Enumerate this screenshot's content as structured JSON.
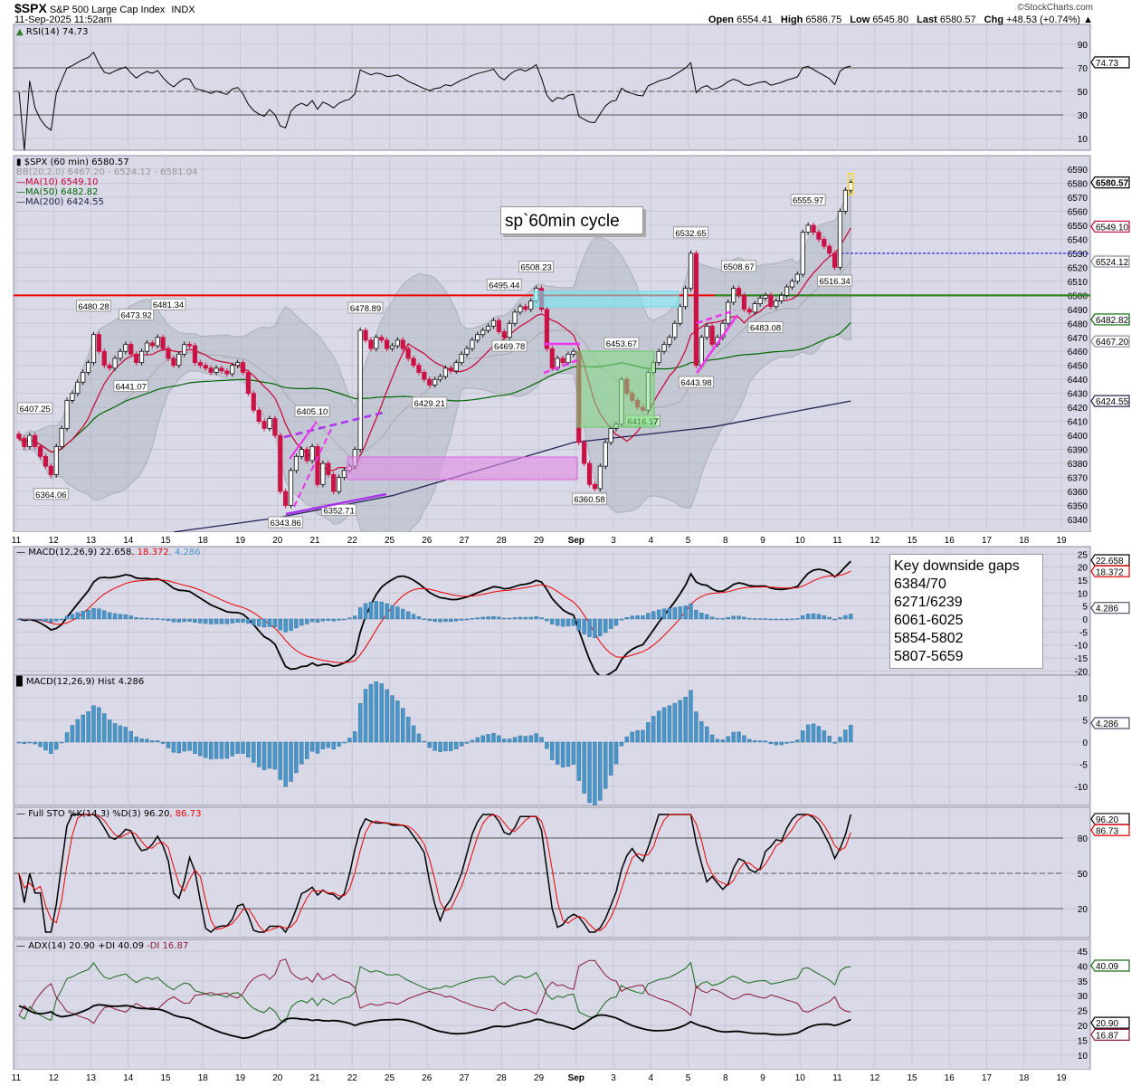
{
  "header": {
    "symbol": "$SPX",
    "name": "S&P 500 Large Cap Index",
    "exchange": "INDX",
    "datetime": "11-Sep-2025 11:52am",
    "brand": "©StockCharts.com",
    "open_label": "Open",
    "open": "6554.41",
    "high_label": "High",
    "high": "6586.75",
    "low_label": "Low",
    "low": "6545.80",
    "last_label": "Last",
    "last": "6580.57",
    "chg_label": "Chg",
    "chg": "+48.53 (+0.74%) ▲"
  },
  "annotations": {
    "cycle_note": "sp`60min cycle",
    "gaps_title": "Key downside gaps",
    "gaps": [
      "6384/70",
      "6271/6239",
      "6061-6025",
      "5854-5802",
      "5807-5659"
    ]
  },
  "legends": {
    "rsi": "RSI(14) 74.73",
    "price": "$SPX (60 min) 6580.57",
    "bb": "BB(20,2.0) 6467.20 - 6524.12 - 6581.04",
    "ma10": "MA(10) 6549.10",
    "ma50": "MA(50) 6482.82",
    "ma200": "MA(200) 6424.55",
    "macd": "MACD(12,26,9) 22.658",
    "macd_signal": ", 18.372",
    "macd_hist": ", 4.286",
    "hist": "MACD(12,26,9) Hist 4.286",
    "sto": "Full STO %K(14,3) %D(3) 96.20",
    "sto_d": ", 86.73",
    "adx": "ADX(14) 20.90 +DI 40.09",
    "adx_mdi": " -DI 16.87"
  },
  "chart_data": {
    "type": "candlestick",
    "interval": "60 min",
    "colors": {
      "up": "#ffffff",
      "down": "#cc1144",
      "ma10": "#cc0033",
      "ma50": "#006600",
      "ma200": "#222255",
      "bb": "#aab0b8",
      "macd": "#000000",
      "signal": "#ee0000",
      "hist": "#4a96c8",
      "pdi": "#1a6b1a",
      "mdi": "#8b1a3a",
      "adx": "#000000"
    },
    "x_ticks": [
      "11",
      "12",
      "13",
      "14",
      "15",
      "18",
      "19",
      "20",
      "21",
      "22",
      "25",
      "26",
      "27",
      "28",
      "29",
      "Sep",
      "3",
      "4",
      "5",
      "8",
      "9",
      "10",
      "11",
      "12",
      "15",
      "16",
      "17",
      "18",
      "19"
    ],
    "closes": [
      6398,
      6392,
      6400,
      6392,
      6385,
      6378,
      6372,
      6392,
      6405,
      6425,
      6430,
      6438,
      6445,
      6452,
      6472,
      6460,
      6450,
      6448,
      6455,
      6460,
      6465,
      6458,
      6452,
      6460,
      6466,
      6464,
      6470,
      6462,
      6455,
      6450,
      6458,
      6465,
      6464,
      6452,
      6450,
      6448,
      6445,
      6448,
      6446,
      6444,
      6450,
      6452,
      6445,
      6430,
      6418,
      6410,
      6405,
      6412,
      6400,
      6360,
      6350,
      6375,
      6385,
      6390,
      6382,
      6392,
      6365,
      6380,
      6372,
      6360,
      6370,
      6375,
      6378,
      6390,
      6475,
      6468,
      6462,
      6470,
      6468,
      6462,
      6464,
      6468,
      6462,
      6455,
      6450,
      6445,
      6440,
      6436,
      6440,
      6442,
      6448,
      6446,
      6452,
      6458,
      6462,
      6468,
      6472,
      6475,
      6478,
      6482,
      6474,
      6470,
      6480,
      6488,
      6492,
      6490,
      6496,
      6505,
      6490,
      6462,
      6448,
      6455,
      6452,
      6458,
      6460,
      6395,
      6380,
      6365,
      6362,
      6378,
      6395,
      6405,
      6408,
      6440,
      6430,
      6425,
      6420,
      6418,
      6445,
      6452,
      6460,
      6465,
      6470,
      6480,
      6492,
      6505,
      6530,
      6450,
      6470,
      6478,
      6465,
      6470,
      6480,
      6495,
      6505,
      6500,
      6490,
      6488,
      6494,
      6498,
      6500,
      6492,
      6496,
      6500,
      6506,
      6510,
      6515,
      6545,
      6550,
      6545,
      6540,
      6535,
      6530,
      6520,
      6560,
      6575,
      6580.57
    ],
    "ma200_points": [
      [
        29,
        6331
      ],
      [
        48,
        6341
      ],
      [
        70,
        6357
      ],
      [
        104,
        6395
      ],
      [
        130,
        6406
      ],
      [
        156,
        6424.55
      ]
    ],
    "price_labels": [
      {
        "text": "6407.25",
        "bar": 3,
        "pos": "above"
      },
      {
        "text": "6364.06",
        "bar": 6,
        "pos": "below"
      },
      {
        "text": "6480.28",
        "bar": 14,
        "pos": "above"
      },
      {
        "text": "6441.07",
        "bar": 21,
        "pos": "below"
      },
      {
        "text": "6473.92",
        "bar": 22,
        "pos": "above"
      },
      {
        "text": "6481.34",
        "bar": 28,
        "pos": "above"
      },
      {
        "text": "6343.86",
        "bar": 50,
        "pos": "below"
      },
      {
        "text": "6405.10",
        "bar": 55,
        "pos": "above"
      },
      {
        "text": "6352.71",
        "bar": 60,
        "pos": "below"
      },
      {
        "text": "6478.89",
        "bar": 65,
        "pos": "above"
      },
      {
        "text": "6429.21",
        "bar": 77,
        "pos": "below"
      },
      {
        "text": "6495.44",
        "bar": 91,
        "pos": "above"
      },
      {
        "text": "6469.78",
        "bar": 92,
        "pos": "below"
      },
      {
        "text": "6508.23",
        "bar": 97,
        "pos": "above"
      },
      {
        "text": "6360.58",
        "bar": 107,
        "pos": "below"
      },
      {
        "text": "6453.67",
        "bar": 113,
        "pos": "above"
      },
      {
        "text": "6416.17",
        "bar": 117,
        "pos": "below",
        "color": "#bff0bf"
      },
      {
        "text": "6532.65",
        "bar": 126,
        "pos": "above"
      },
      {
        "text": "6443.98",
        "bar": 127,
        "pos": "below"
      },
      {
        "text": "6508.67",
        "bar": 135,
        "pos": "above"
      },
      {
        "text": "6483.08",
        "bar": 140,
        "pos": "below"
      },
      {
        "text": "6555.97",
        "bar": 148,
        "pos": "above"
      },
      {
        "text": "6516.34",
        "bar": 153,
        "pos": "below"
      }
    ],
    "panels": {
      "rsi": {
        "ticks": [
          90,
          70,
          50,
          30,
          10
        ],
        "tags": [
          {
            "text": "74.73",
            "value": 74.73,
            "color": "#000000"
          }
        ]
      },
      "price": {
        "ticks": [
          6590,
          6580,
          6570,
          6560,
          6550,
          6540,
          6530,
          6520,
          6510,
          6500,
          6490,
          6480,
          6470,
          6460,
          6450,
          6440,
          6430,
          6420,
          6410,
          6400,
          6390,
          6380,
          6370,
          6360,
          6350,
          6340
        ],
        "tags": [
          {
            "text": "6580.57",
            "value": 6580.57,
            "color": "#000000"
          },
          {
            "text": "6549.10",
            "value": 6549.1,
            "color": "#cc0033"
          },
          {
            "text": "6524.12",
            "value": 6524.12,
            "color": "#8890a0"
          },
          {
            "text": "6482.82",
            "value": 6482.82,
            "color": "#006600"
          },
          {
            "text": "6467.20",
            "value": 6467.2,
            "color": "#8890a0"
          },
          {
            "text": "6424.55",
            "value": 6424.55,
            "color": "#222255"
          }
        ],
        "lines": [
          {
            "value": 6500,
            "color": "#ee0000"
          },
          {
            "value": 6530,
            "color": "#0000ee",
            "style": "dashed"
          }
        ]
      },
      "macd": {
        "ticks": [
          25,
          20,
          15,
          10,
          5,
          0,
          -5,
          -10,
          -15,
          -20
        ],
        "tags": [
          {
            "text": "22.658",
            "value": 22.658,
            "color": "#000000"
          },
          {
            "text": "18.372",
            "value": 18.372,
            "color": "#ee0000"
          },
          {
            "text": "4.286",
            "value": 4.286,
            "color": "#4a5070"
          }
        ]
      },
      "hist": {
        "ticks": [
          10,
          5,
          0,
          -5,
          -10
        ],
        "tags": [
          {
            "text": "4.286",
            "value": 4.286,
            "color": "#4a5070"
          }
        ]
      },
      "sto": {
        "ticks": [
          80,
          50,
          20
        ],
        "tags": [
          {
            "text": "96.20",
            "value": 96.2,
            "color": "#000000"
          },
          {
            "text": "86.73",
            "value": 86.73,
            "color": "#ee0000"
          }
        ]
      },
      "adx": {
        "ticks": [
          45,
          40,
          35,
          30,
          25,
          20,
          15,
          10
        ],
        "tags": [
          {
            "text": "40.09",
            "value": 40.09,
            "color": "#1a6b1a"
          },
          {
            "text": "20.90",
            "value": 20.9,
            "color": "#000000"
          },
          {
            "text": "16.87",
            "value": 16.87,
            "color": "#8b1a3a"
          }
        ]
      }
    }
  }
}
